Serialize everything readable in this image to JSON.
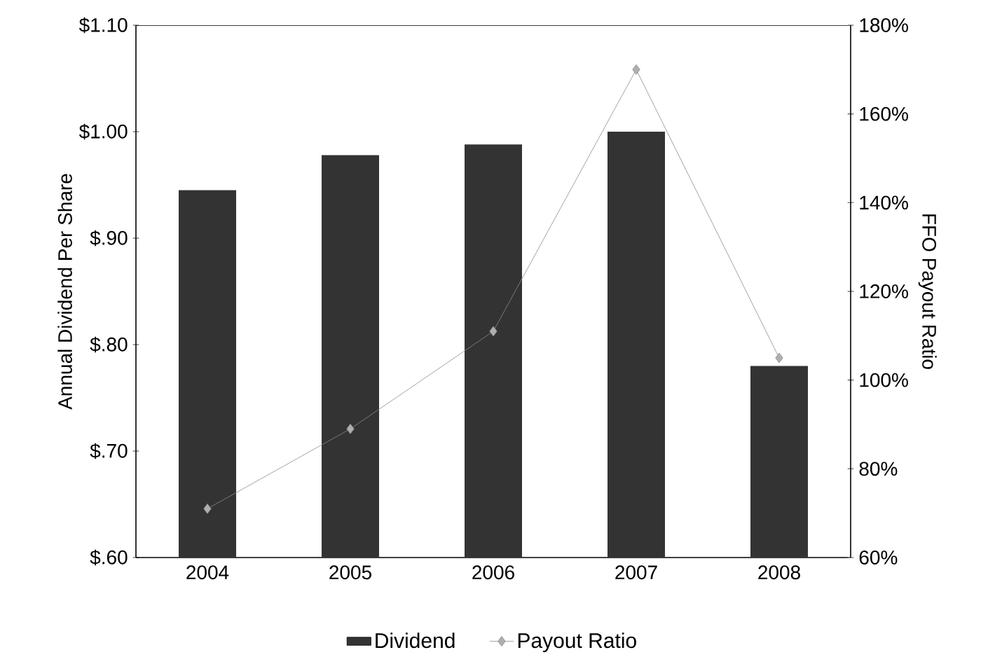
{
  "chart_data": {
    "type": "bar",
    "categories": [
      "2004",
      "2005",
      "2006",
      "2007",
      "2008"
    ],
    "ylabel": "Annual Dividend Per Share",
    "y2label": "FFO Payout Ratio",
    "ylim": [
      0.6,
      1.1
    ],
    "yticks": [
      {
        "value": 0.6,
        "label": "$.60"
      },
      {
        "value": 0.7,
        "label": "$.70"
      },
      {
        "value": 0.8,
        "label": "$.80"
      },
      {
        "value": 0.9,
        "label": "$.90"
      },
      {
        "value": 1.0,
        "label": "$1.00"
      },
      {
        "value": 1.1,
        "label": "$1.10"
      }
    ],
    "y2lim": [
      60,
      180
    ],
    "y2ticks": [
      {
        "value": 60,
        "label": "60%"
      },
      {
        "value": 80,
        "label": "80%"
      },
      {
        "value": 100,
        "label": "100%"
      },
      {
        "value": 120,
        "label": "120%"
      },
      {
        "value": 140,
        "label": "140%"
      },
      {
        "value": 160,
        "label": "160%"
      },
      {
        "value": 180,
        "label": "180%"
      }
    ],
    "legend": "bottom",
    "series": [
      {
        "name": "Dividend",
        "color": "#333333",
        "values": [
          0.945,
          0.978,
          0.988,
          1.0,
          0.78
        ]
      },
      {
        "name": "Payout Ratio",
        "type": "line",
        "axis": "y2",
        "color": "#8c8c8c",
        "marker": "diamond",
        "values": [
          71,
          89,
          111,
          170,
          105
        ]
      }
    ]
  }
}
